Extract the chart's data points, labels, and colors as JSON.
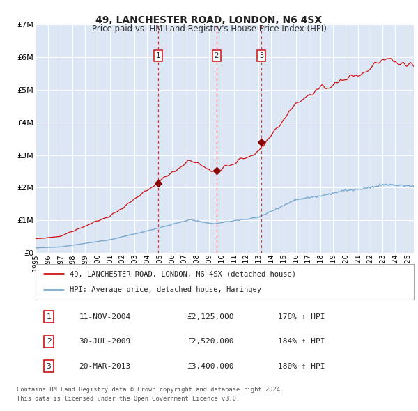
{
  "title": "49, LANCHESTER ROAD, LONDON, N6 4SX",
  "subtitle": "Price paid vs. HM Land Registry's House Price Index (HPI)",
  "ylim": [
    0,
    7000000
  ],
  "yticks": [
    0,
    1000000,
    2000000,
    3000000,
    4000000,
    5000000,
    6000000,
    7000000
  ],
  "ytick_labels": [
    "£0",
    "£1M",
    "£2M",
    "£3M",
    "£4M",
    "£5M",
    "£6M",
    "£7M"
  ],
  "xlim_start": 1995.0,
  "xlim_end": 2025.5,
  "background_color": "#dce6f5",
  "grid_color": "#ffffff",
  "sale_color": "#cc1111",
  "hpi_color": "#7aaad0",
  "marker_color": "#880000",
  "dashed_line_color": "#cc1111",
  "transactions": [
    {
      "num": 1,
      "date_str": "11-NOV-2004",
      "date_x": 2004.87,
      "price": 2125000,
      "pct": "178%"
    },
    {
      "num": 2,
      "date_str": "30-JUL-2009",
      "date_x": 2009.58,
      "price": 2520000,
      "pct": "184%"
    },
    {
      "num": 3,
      "date_str": "20-MAR-2013",
      "date_x": 2013.22,
      "price": 3400000,
      "pct": "180%"
    }
  ],
  "legend_label_red": "49, LANCHESTER ROAD, LONDON, N6 4SX (detached house)",
  "legend_label_blue": "HPI: Average price, detached house, Haringey",
  "footnote1": "Contains HM Land Registry data © Crown copyright and database right 2024.",
  "footnote2": "This data is licensed under the Open Government Licence v3.0."
}
